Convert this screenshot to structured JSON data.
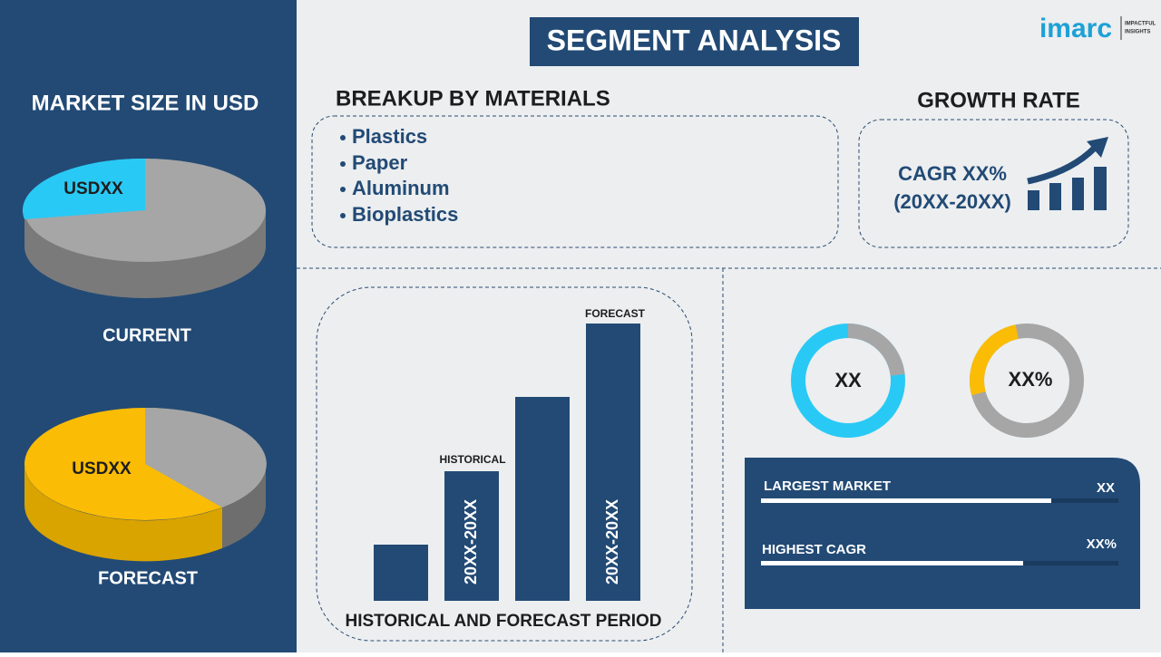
{
  "header": {
    "title": "SEGMENT ANALYSIS",
    "logo": "imarc",
    "logo_tag": [
      "IMPACTFUL",
      "INSIGHTS"
    ]
  },
  "market_size": {
    "title": "MARKET SIZE IN USD",
    "current": {
      "label": "USDXX",
      "caption": "CURRENT"
    },
    "forecast": {
      "label": "USDXX",
      "caption": "FORECAST"
    }
  },
  "materials": {
    "title": "BREAKUP BY MATERIALS",
    "items": [
      "Plastics",
      "Paper",
      "Aluminum",
      "Bioplastics"
    ]
  },
  "growth": {
    "title": "GROWTH RATE",
    "lines": [
      "CAGR XX%",
      "(20XX-20XX)"
    ]
  },
  "period": {
    "title": "HISTORICAL AND FORECAST PERIOD",
    "historical": "HISTORICAL",
    "forecast": "FORECAST",
    "bar_texts": [
      "20XX-20XX",
      "20XX-20XX"
    ]
  },
  "donuts": [
    "XX",
    "XX%"
  ],
  "stats": [
    {
      "label": "LARGEST MARKET",
      "value": "XX"
    },
    {
      "label": "HIGHEST CAGR",
      "value": "XX%"
    }
  ]
}
